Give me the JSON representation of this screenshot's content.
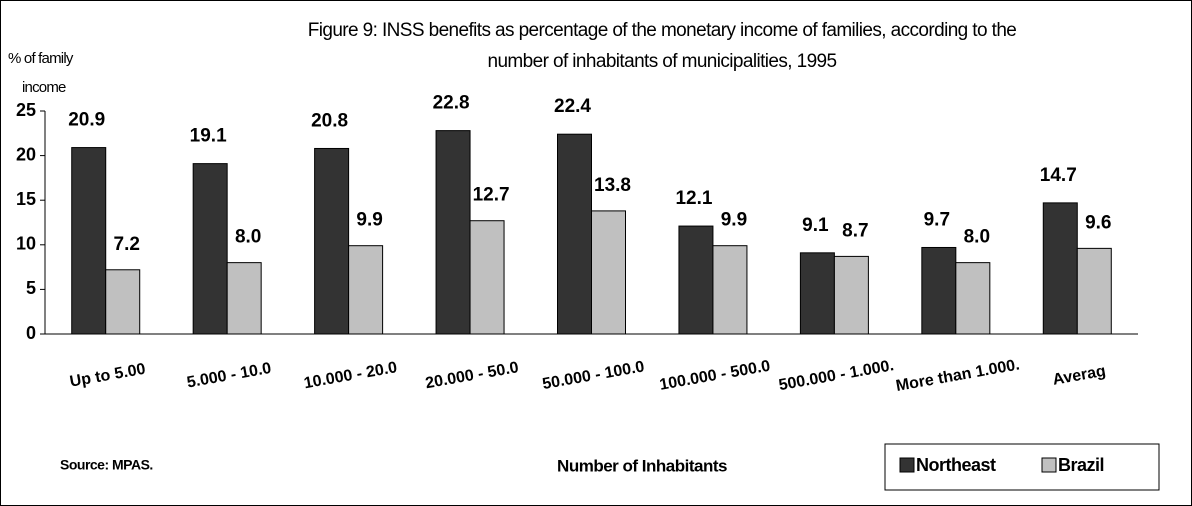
{
  "chart_data": {
    "type": "bar",
    "title": [
      "Figure 9:  INSS benefits as percentage of the monetary income of families, according to the",
      "number of inhabitants of municipalities, 1995"
    ],
    "y_label": [
      "% of family",
      "income"
    ],
    "x_label": "Number of Inhabitants",
    "source": "Source: MPAS.",
    "categories": [
      "Up to 5.00",
      "5.000 - 10.0",
      "10.000 - 20.0",
      "20.000 - 50.0",
      "50.000 - 100.0",
      "100.000 - 500.0",
      "500.000 - 1.000.",
      "More than 1.000.",
      "Averag"
    ],
    "series": [
      {
        "name": "Northeast",
        "color": "#333333",
        "values": [
          20.9,
          19.1,
          20.8,
          22.8,
          22.4,
          12.1,
          9.1,
          9.7,
          14.7
        ],
        "value_labels": [
          "20.9",
          "19.1",
          "20.8",
          "22.8",
          "22.4",
          "12.1",
          "9.1",
          "9.7",
          "14.7"
        ]
      },
      {
        "name": "Brazil",
        "color": "#c0c0c0",
        "values": [
          7.2,
          8,
          9.9,
          12.7,
          13.8,
          9.9,
          8.7,
          8,
          9.6
        ],
        "value_labels": [
          "7.2",
          "8.0",
          "9.9",
          "12.7",
          "13.8",
          "9.9",
          "8.7",
          "8.0",
          "9.6"
        ]
      }
    ],
    "ylim": [
      0,
      25
    ],
    "yticks": [
      0,
      5,
      10,
      15,
      20,
      25
    ],
    "grid": false,
    "legend": "lower right"
  }
}
